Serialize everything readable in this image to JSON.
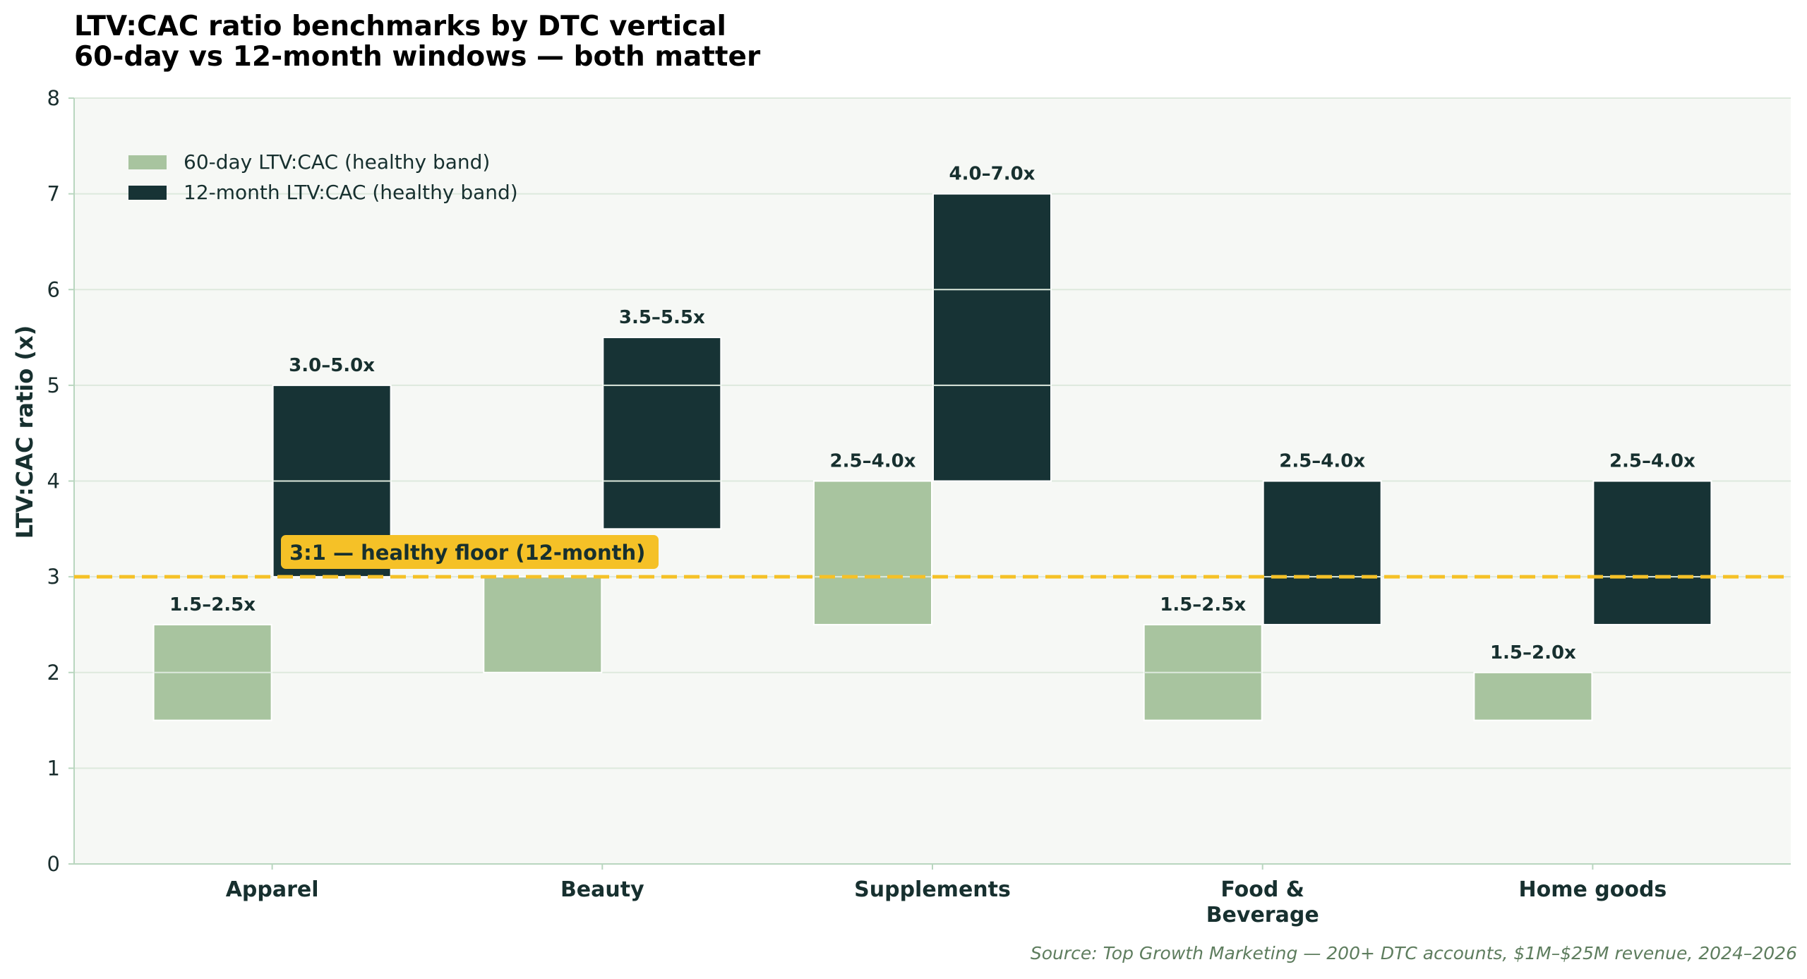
{
  "chart_data": {
    "type": "bar",
    "subtype": "floating-range",
    "title": "LTV:CAC ratio benchmarks by DTC vertical",
    "subtitle": "60-day vs 12-month windows — both matter",
    "ylabel": "LTV:CAC ratio (x)",
    "xlabel": "",
    "ylim": [
      0,
      8
    ],
    "yticks": [
      "0",
      "1",
      "2",
      "3",
      "4",
      "5",
      "6",
      "7",
      "8"
    ],
    "grid": "horizontal",
    "legend_position": "top-left",
    "categories": [
      "Apparel",
      "Beauty",
      "Supplements",
      "Food &\nBeverage",
      "Home goods"
    ],
    "series": [
      {
        "name": "60-day LTV:CAC (healthy band)",
        "color": "#a8c49f",
        "ranges": [
          [
            1.5,
            2.5
          ],
          [
            2.0,
            3.0
          ],
          [
            2.5,
            4.0
          ],
          [
            1.5,
            2.5
          ],
          [
            1.5,
            2.0
          ]
        ],
        "labels": [
          "1.5–2.5x",
          "",
          "2.5–4.0x",
          "1.5–2.5x",
          "1.5–2.0x"
        ]
      },
      {
        "name": "12-month LTV:CAC (healthy band)",
        "color": "#173335",
        "ranges": [
          [
            3.0,
            5.0
          ],
          [
            3.5,
            5.5
          ],
          [
            4.0,
            7.0
          ],
          [
            2.5,
            4.0
          ],
          [
            2.5,
            4.0
          ]
        ],
        "labels": [
          "3.0–5.0x",
          "3.5–5.5x",
          "4.0–7.0x",
          "2.5–4.0x",
          "2.5–4.0x"
        ]
      }
    ],
    "reference_line": {
      "value": 3,
      "label": "3:1 — healthy floor (12-month)",
      "color": "#f5c127"
    },
    "source": "Source: Top Growth Marketing — 200+ DTC accounts, $1M–$25M revenue, 2024–2026",
    "colors": {
      "plot_background": "#f6f8f5",
      "gridline": "#dde9dd",
      "axis": "#b9d6bf"
    }
  }
}
